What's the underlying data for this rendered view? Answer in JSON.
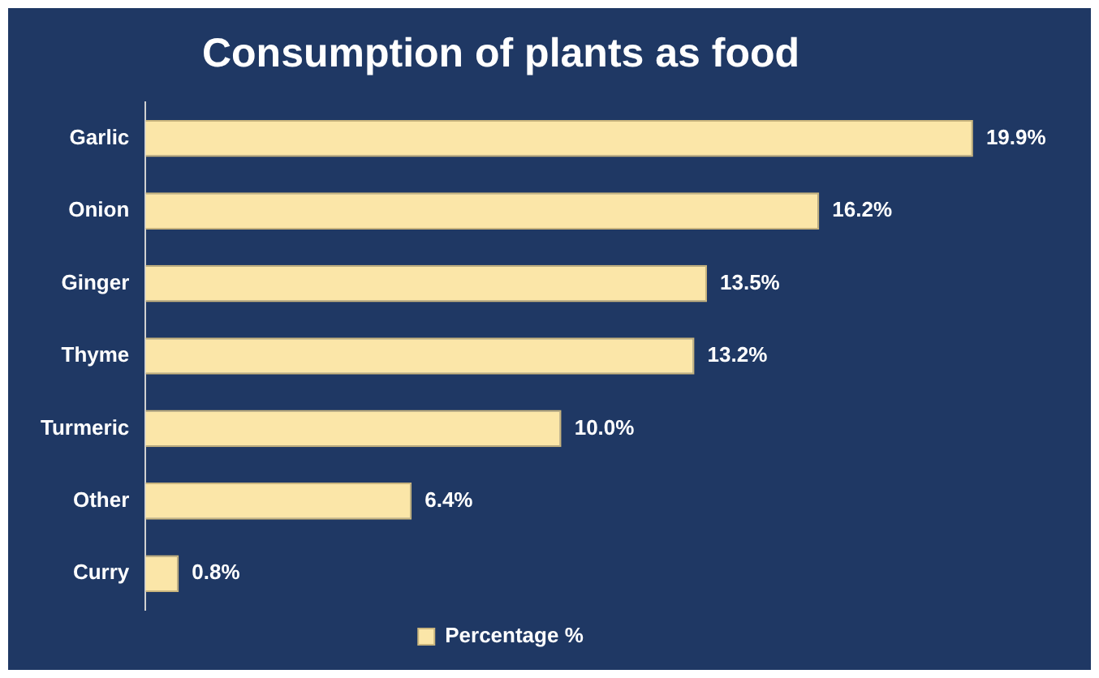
{
  "chart_data": {
    "type": "bar",
    "orientation": "horizontal",
    "title": "Consumption of plants as food",
    "categories": [
      "Garlic",
      "Onion",
      "Ginger",
      "Thyme",
      "Turmeric",
      "Other",
      "Curry"
    ],
    "series": [
      {
        "name": "Percentage %",
        "color": "#fbe6a8",
        "values": [
          19.9,
          16.2,
          13.5,
          13.2,
          10.0,
          6.4,
          0.8
        ],
        "value_labels": [
          "19.9%",
          "16.2%",
          "13.5%",
          "13.2%",
          "10.0%",
          "6.4%",
          "0.8%"
        ]
      }
    ],
    "legend": "bottom",
    "grid": false
  }
}
